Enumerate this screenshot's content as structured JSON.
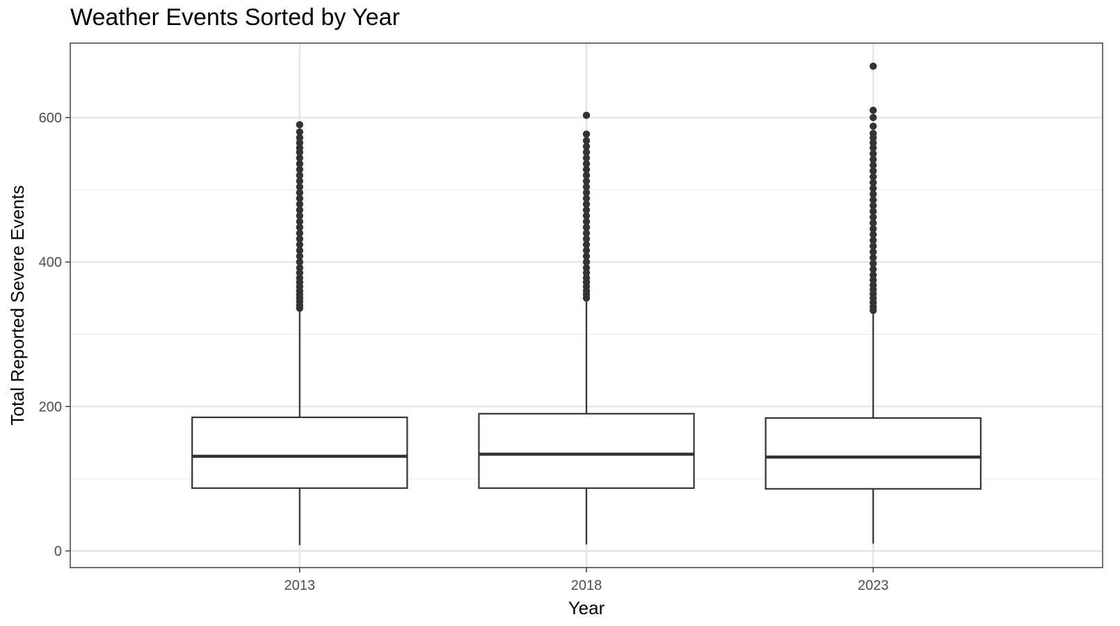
{
  "chart_data": {
    "type": "boxplot",
    "title": "Weather Events Sorted by Year",
    "xlabel": "Year",
    "ylabel": "Total Reported Severe Events",
    "categories": [
      "2013",
      "2018",
      "2023"
    ],
    "ylim": [
      -23,
      703
    ],
    "yticks": [
      0,
      200,
      400,
      600
    ],
    "ytick_labels": [
      "0",
      "200",
      "400",
      "600"
    ],
    "grid": true,
    "boxes": [
      {
        "category": "2013",
        "whisker_low": 8,
        "q1": 87,
        "median": 131,
        "q3": 185,
        "whisker_high": 332,
        "outliers": [
          336,
          340,
          345,
          350,
          355,
          360,
          366,
          372,
          378,
          385,
          392,
          400,
          408,
          416,
          424,
          432,
          440,
          448,
          456,
          464,
          472,
          480,
          488,
          496,
          504,
          512,
          520,
          528,
          536,
          544,
          552,
          558,
          565,
          572,
          580,
          590
        ]
      },
      {
        "category": "2018",
        "whisker_low": 9,
        "q1": 87,
        "median": 134,
        "q3": 190,
        "whisker_high": 345,
        "outliers": [
          350,
          355,
          360,
          366,
          372,
          378,
          385,
          392,
          400,
          408,
          416,
          424,
          432,
          440,
          448,
          456,
          464,
          472,
          480,
          488,
          496,
          504,
          512,
          520,
          528,
          536,
          544,
          552,
          560,
          568,
          577,
          603
        ]
      },
      {
        "category": "2023",
        "whisker_low": 10,
        "q1": 86,
        "median": 130,
        "q3": 184,
        "whisker_high": 330,
        "outliers": [
          333,
          338,
          344,
          350,
          356,
          362,
          368,
          375,
          382,
          390,
          398,
          406,
          414,
          422,
          430,
          438,
          446,
          454,
          462,
          470,
          478,
          486,
          494,
          502,
          510,
          518,
          526,
          534,
          542,
          550,
          558,
          565,
          572,
          578,
          588,
          600,
          610,
          671
        ]
      }
    ]
  }
}
